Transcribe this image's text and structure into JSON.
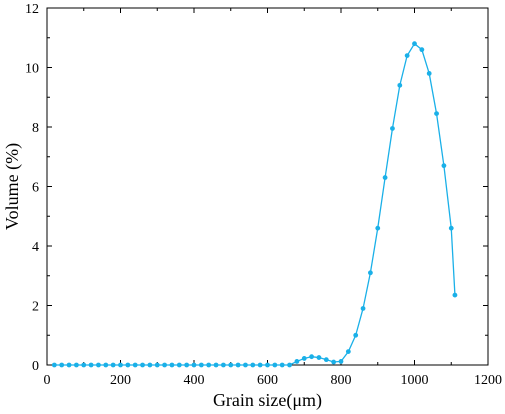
{
  "chart_data": {
    "type": "line",
    "xlabel": "Grain size(μm)",
    "ylabel": "Volume (%)",
    "xlim": [
      0,
      1200
    ],
    "ylim": [
      0,
      12
    ],
    "x_ticks": [
      0,
      200,
      400,
      600,
      800,
      1000,
      1200
    ],
    "y_ticks": [
      0,
      2,
      4,
      6,
      8,
      10,
      12
    ],
    "grid": false,
    "series": [
      {
        "color": "#1ab0e8",
        "marker": "circle",
        "x": [
          20,
          40,
          60,
          80,
          100,
          120,
          140,
          160,
          180,
          200,
          220,
          240,
          260,
          280,
          300,
          320,
          340,
          360,
          380,
          400,
          420,
          440,
          460,
          480,
          500,
          520,
          540,
          560,
          580,
          600,
          620,
          640,
          660,
          680,
          700,
          720,
          740,
          760,
          780,
          800,
          820,
          840,
          860,
          880,
          900,
          920,
          940,
          960,
          980,
          1000,
          1020,
          1040,
          1060,
          1080,
          1100,
          1110
        ],
        "values": [
          0,
          0,
          0,
          0,
          0,
          0,
          0,
          0,
          0,
          0,
          0,
          0,
          0,
          0,
          0,
          0,
          0,
          0,
          0,
          0,
          0,
          0,
          0,
          0,
          0,
          0,
          0,
          0,
          0,
          0,
          0,
          0,
          0,
          0.12,
          0.22,
          0.28,
          0.25,
          0.18,
          0.1,
          0.12,
          0.45,
          1.0,
          1.9,
          3.1,
          4.6,
          6.3,
          7.95,
          9.4,
          10.4,
          10.8,
          10.6,
          9.8,
          8.45,
          6.7,
          4.6,
          2.35
        ]
      }
    ]
  }
}
